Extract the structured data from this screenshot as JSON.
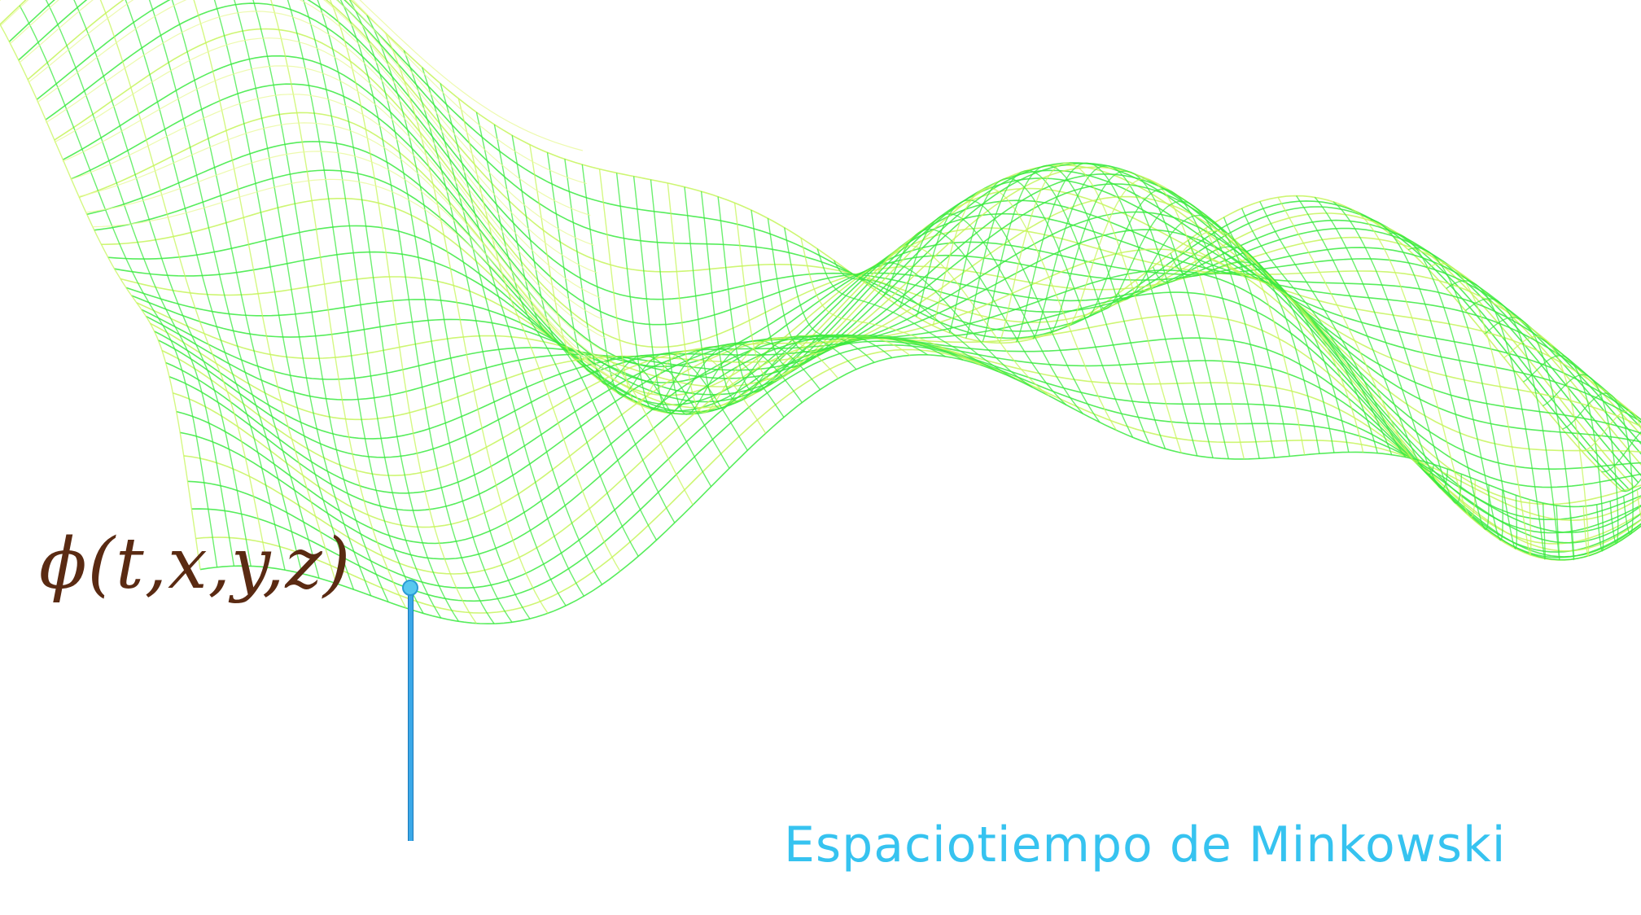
{
  "diagram": {
    "field_label": "ϕ(t,x,y,z)",
    "caption": "Espaciotiempo de Minkowski",
    "colors": {
      "background": "#ffffff",
      "mesh_primary": "#39ea3f",
      "mesh_secondary": "#c6f55a",
      "mesh_faint": "#e8f99a",
      "pointer": "#3aa8e8",
      "label": "#5a2a12",
      "caption": "#36c3f0"
    },
    "surface": {
      "type": "wireframe-mesh",
      "description_icon": "wave-surface-icon"
    }
  }
}
